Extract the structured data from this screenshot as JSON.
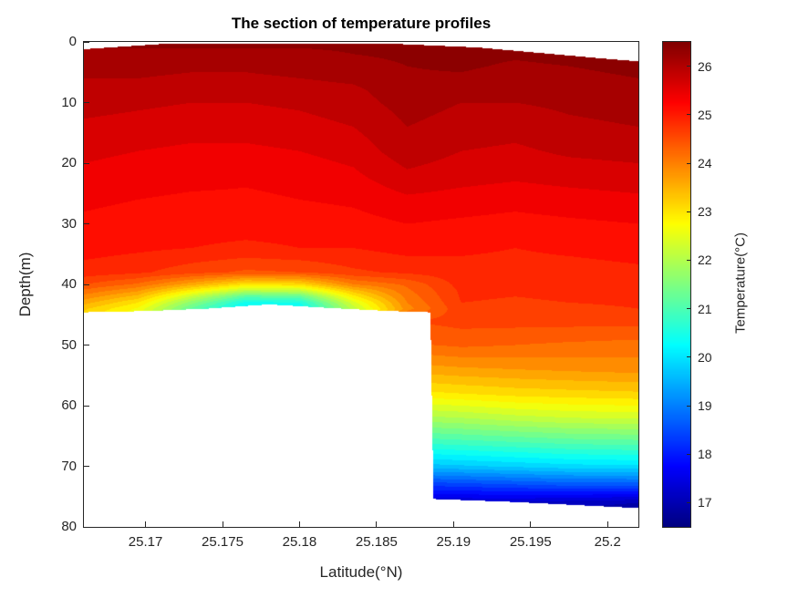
{
  "title": "The section of temperature profiles",
  "axes": {
    "xlabel": "Latitude(°N)",
    "ylabel": "Depth(m)",
    "x_range": [
      25.166,
      25.202
    ],
    "y_range": [
      0,
      80
    ],
    "x_ticks": [
      25.17,
      25.175,
      25.18,
      25.185,
      25.19,
      25.195,
      25.2
    ],
    "x_tick_labels": [
      "25.17",
      "25.175",
      "25.18",
      "25.185",
      "25.19",
      "25.195",
      "25.2"
    ],
    "y_ticks": [
      0,
      10,
      20,
      30,
      40,
      50,
      60,
      70,
      80
    ],
    "y_tick_labels": [
      "0",
      "10",
      "20",
      "30",
      "40",
      "50",
      "60",
      "70",
      "80"
    ]
  },
  "colorbar": {
    "label": "Temperature(°C)",
    "range": [
      16.5,
      26.5
    ],
    "ticks": [
      17,
      18,
      19,
      20,
      21,
      22,
      23,
      24,
      25,
      26
    ],
    "tick_labels": [
      "17",
      "18",
      "19",
      "20",
      "21",
      "22",
      "23",
      "24",
      "25",
      "26"
    ]
  },
  "chart_data": {
    "type": "heatmap",
    "style": "filled-contour-section",
    "title": "The section of temperature profiles",
    "xlabel": "Latitude(°N)",
    "ylabel": "Depth(m)",
    "zlabel": "Temperature(°C)",
    "colormap": "jet",
    "color_range": [
      16.5,
      26.5
    ],
    "band_step": 0.25,
    "lats": [
      25.166,
      25.1695,
      25.173,
      25.1765,
      25.18,
      25.1835,
      25.187,
      25.1905,
      25.194,
      25.1975,
      25.202
    ],
    "depths": [
      0,
      2,
      4,
      6,
      8,
      10,
      14,
      18,
      22,
      26,
      30,
      34,
      38,
      40,
      41,
      42,
      43,
      44,
      46,
      50,
      54,
      58,
      62,
      66,
      70,
      73,
      76,
      80
    ],
    "temperature": [
      [
        26.3,
        26.3,
        26.3,
        26.3,
        26.3,
        26.3,
        26.35,
        26.4,
        26.35,
        26.4,
        26.45
      ],
      [
        26.2,
        26.2,
        26.2,
        26.2,
        26.2,
        26.25,
        26.3,
        26.35,
        26.3,
        26.35,
        26.4
      ],
      [
        26.1,
        26.1,
        26.05,
        26.05,
        26.1,
        26.15,
        26.25,
        26.3,
        26.2,
        26.25,
        26.3
      ],
      [
        26.0,
        26.0,
        25.95,
        25.95,
        26.0,
        26.05,
        26.2,
        26.2,
        26.1,
        26.2,
        26.25
      ],
      [
        25.9,
        25.9,
        25.85,
        25.85,
        25.9,
        25.95,
        26.15,
        26.1,
        26.05,
        26.1,
        26.2
      ],
      [
        25.85,
        25.8,
        25.75,
        25.75,
        25.8,
        25.9,
        26.1,
        26.0,
        26.0,
        26.05,
        26.1
      ],
      [
        25.7,
        25.65,
        25.6,
        25.6,
        25.65,
        25.75,
        26.0,
        25.9,
        25.85,
        25.95,
        26.0
      ],
      [
        25.55,
        25.5,
        25.45,
        25.45,
        25.5,
        25.6,
        25.9,
        25.75,
        25.7,
        25.8,
        25.85
      ],
      [
        25.45,
        25.4,
        25.35,
        25.3,
        25.35,
        25.45,
        25.7,
        25.6,
        25.55,
        25.6,
        25.65
      ],
      [
        25.3,
        25.25,
        25.2,
        25.2,
        25.25,
        25.3,
        25.45,
        25.4,
        25.35,
        25.4,
        25.45
      ],
      [
        25.2,
        25.15,
        25.1,
        25.1,
        25.1,
        25.15,
        25.25,
        25.2,
        25.15,
        25.2,
        25.25
      ],
      [
        25.1,
        25.05,
        25.0,
        24.95,
        25.0,
        25.0,
        25.1,
        25.05,
        25.0,
        25.05,
        25.1
      ],
      [
        24.9,
        24.8,
        24.6,
        24.45,
        24.5,
        24.7,
        24.8,
        24.9,
        24.9,
        24.9,
        24.95
      ],
      [
        24.5,
        24.2,
        23.6,
        23.0,
        23.1,
        24.0,
        24.3,
        24.85,
        24.8,
        24.85,
        24.9
      ],
      [
        24.2,
        23.8,
        22.9,
        22.1,
        22.2,
        23.4,
        24.2,
        24.8,
        24.78,
        24.8,
        24.85
      ],
      [
        23.9,
        23.4,
        22.2,
        21.1,
        21.2,
        22.9,
        24.1,
        24.78,
        24.75,
        24.78,
        24.8
      ],
      [
        23.6,
        23.0,
        21.6,
        20.4,
        20.5,
        22.4,
        24.0,
        24.75,
        24.72,
        24.75,
        24.78
      ],
      [
        23.3,
        22.7,
        21.2,
        20.1,
        20.2,
        22.1,
        23.9,
        24.7,
        24.7,
        24.7,
        24.75
      ],
      [
        23.0,
        22.4,
        21.0,
        19.9,
        20.0,
        21.8,
        24.5,
        24.6,
        24.6,
        24.6,
        24.6
      ],
      [
        22.5,
        22.0,
        20.6,
        19.6,
        19.7,
        21.4,
        24.2,
        24.3,
        24.25,
        24.2,
        24.15
      ],
      [
        22.0,
        21.5,
        20.2,
        19.3,
        19.4,
        21.0,
        23.6,
        23.7,
        23.75,
        23.8,
        23.85
      ],
      [
        21.5,
        21.0,
        19.8,
        19.0,
        19.1,
        20.6,
        22.9,
        23.0,
        23.1,
        23.15,
        23.2
      ],
      [
        21.0,
        20.5,
        19.4,
        18.7,
        18.8,
        20.2,
        21.9,
        22.0,
        22.15,
        22.25,
        22.3
      ],
      [
        20.5,
        20.0,
        19.0,
        18.4,
        18.5,
        19.8,
        20.8,
        20.9,
        21.0,
        21.1,
        21.15
      ],
      [
        20.0,
        19.5,
        18.6,
        18.1,
        18.2,
        19.4,
        19.6,
        19.7,
        19.8,
        19.9,
        19.95
      ],
      [
        19.5,
        19.0,
        18.2,
        17.8,
        17.9,
        19.0,
        18.3,
        18.4,
        18.5,
        18.6,
        18.6
      ],
      [
        19.0,
        18.5,
        17.8,
        17.5,
        17.6,
        18.6,
        17.2,
        17.2,
        17.2,
        17.1,
        17.0
      ],
      [
        18.5,
        18.0,
        17.4,
        17.2,
        17.3,
        18.2,
        16.7,
        16.7,
        16.7,
        16.6,
        16.6
      ]
    ],
    "seafloor": {
      "lats": [
        25.166,
        25.17,
        25.174,
        25.178,
        25.182,
        25.186,
        25.1885,
        25.1887,
        25.194,
        25.198,
        25.202
      ],
      "depths": [
        44.6,
        44.4,
        44.0,
        43.3,
        43.9,
        44.4,
        44.6,
        75.4,
        75.9,
        76.4,
        76.9
      ]
    },
    "surface_start": {
      "lats": [
        25.166,
        25.171,
        25.186,
        25.1915,
        25.2,
        25.202
      ],
      "depths": [
        1.2,
        0.35,
        0.3,
        0.9,
        2.8,
        3.2
      ]
    }
  }
}
